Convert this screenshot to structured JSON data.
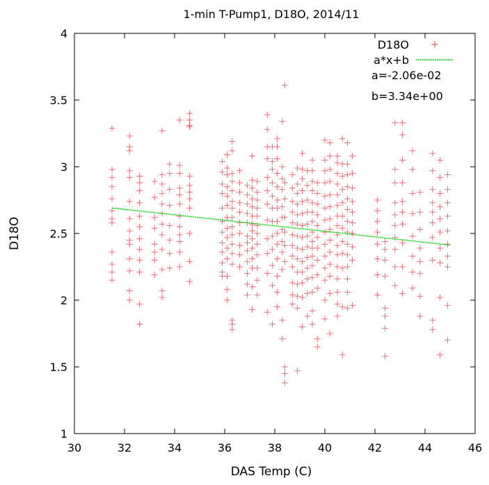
{
  "chart_data": {
    "type": "scatter",
    "title": "1-min T-Pump1, D18O, 2014/11",
    "xlabel": "DAS Temp (C)",
    "ylabel": "D18O",
    "xlim": [
      30,
      46
    ],
    "ylim": [
      1,
      4
    ],
    "xticks": [
      "30",
      "32",
      "34",
      "36",
      "38",
      "40",
      "42",
      "44",
      "46"
    ],
    "yticks": [
      "1",
      "1.5",
      "2",
      "2.5",
      "3",
      "3.5",
      "4"
    ],
    "grid": false,
    "legend_position": "top-right",
    "colors": {
      "points": "#e8414b",
      "fit": "#00dd00"
    },
    "series": [
      {
        "name": "D18O",
        "marker": "plus",
        "x": [
          31.5,
          31.5,
          31.5,
          31.5,
          31.5,
          31.5,
          31.5,
          31.5,
          31.5,
          31.5,
          31.5,
          31.5,
          32.2,
          32.2,
          32.2,
          32.2,
          32.2,
          32.2,
          32.2,
          32.2,
          32.2,
          32.2,
          32.2,
          32.2,
          32.2,
          32.2,
          32.6,
          32.6,
          32.6,
          32.6,
          32.6,
          32.6,
          32.6,
          32.6,
          32.6,
          32.6,
          32.6,
          32.6,
          33.2,
          33.2,
          33.2,
          33.2,
          33.2,
          33.2,
          33.2,
          33.2,
          33.5,
          33.5,
          33.5,
          33.5,
          33.5,
          33.5,
          33.5,
          33.5,
          33.5,
          33.5,
          33.5,
          33.5,
          33.8,
          33.8,
          33.8,
          33.8,
          33.8,
          33.8,
          33.8,
          33.8,
          34.2,
          34.2,
          34.2,
          34.2,
          34.2,
          34.2,
          34.2,
          34.2,
          34.2,
          34.2,
          34.2,
          34.2,
          34.6,
          34.6,
          34.6,
          34.6,
          34.6,
          34.6,
          34.6,
          34.6,
          34.6,
          34.6,
          34.6,
          34.6,
          35.9,
          35.9,
          35.9,
          35.9,
          35.9,
          35.9,
          35.9,
          35.9,
          35.9,
          35.9,
          35.9,
          35.9,
          36.1,
          36.1,
          36.1,
          36.1,
          36.1,
          36.1,
          36.1,
          36.1,
          36.1,
          36.1,
          36.1,
          36.1,
          36.1,
          36.1,
          36.3,
          36.3,
          36.3,
          36.3,
          36.3,
          36.3,
          36.3,
          36.3,
          36.3,
          36.3,
          36.3,
          36.3,
          36.3,
          36.3,
          36.3,
          36.3,
          36.6,
          36.6,
          36.6,
          36.6,
          36.6,
          36.6,
          36.6,
          36.6,
          36.6,
          36.6,
          36.9,
          36.9,
          36.9,
          36.9,
          36.9,
          36.9,
          36.9,
          36.9,
          36.9,
          36.9,
          36.9,
          36.9,
          37.1,
          37.1,
          37.1,
          37.1,
          37.1,
          37.1,
          37.1,
          37.1,
          37.1,
          37.1,
          37.1,
          37.1,
          37.1,
          37.1,
          37.3,
          37.3,
          37.3,
          37.3,
          37.3,
          37.3,
          37.3,
          37.3,
          37.3,
          37.3,
          37.3,
          37.3,
          37.7,
          37.7,
          37.7,
          37.7,
          37.7,
          37.7,
          37.7,
          37.7,
          37.7,
          37.7,
          37.7,
          37.7,
          37.9,
          37.9,
          37.9,
          37.9,
          37.9,
          37.9,
          37.9,
          37.9,
          37.9,
          37.9,
          37.9,
          37.9,
          38.1,
          38.1,
          38.1,
          38.1,
          38.1,
          38.1,
          38.1,
          38.1,
          38.1,
          38.1,
          38.1,
          38.1,
          38.1,
          38.1,
          38.3,
          38.3,
          38.3,
          38.3,
          38.3,
          38.3,
          38.3,
          38.3,
          38.3,
          38.3,
          38.3,
          38.3,
          38.4,
          38.4,
          38.4,
          38.4,
          38.4,
          38.4,
          38.4,
          38.4,
          38.4,
          38.4,
          38.7,
          38.7,
          38.7,
          38.7,
          38.7,
          38.7,
          38.7,
          38.7,
          38.7,
          38.7,
          38.7,
          38.7,
          38.9,
          38.9,
          38.9,
          38.9,
          38.9,
          38.9,
          38.9,
          38.9,
          38.9,
          38.9,
          38.9,
          38.9,
          38.9,
          38.9,
          39.1,
          39.1,
          39.1,
          39.1,
          39.1,
          39.1,
          39.1,
          39.1,
          39.1,
          39.1,
          39.1,
          39.1,
          39.1,
          39.1,
          39.3,
          39.3,
          39.3,
          39.3,
          39.3,
          39.3,
          39.3,
          39.3,
          39.3,
          39.3,
          39.3,
          39.3,
          39.5,
          39.5,
          39.5,
          39.5,
          39.5,
          39.5,
          39.5,
          39.5,
          39.5,
          39.5,
          39.5,
          39.5,
          39.5,
          39.5,
          39.5,
          39.5,
          39.7,
          39.7,
          39.7,
          39.7,
          39.7,
          39.7,
          39.7,
          39.7,
          39.7,
          39.7,
          39.7,
          39.7,
          40.0,
          40.0,
          40.0,
          40.0,
          40.0,
          40.0,
          40.0,
          40.0,
          40.0,
          40.0,
          40.0,
          40.0,
          40.0,
          40.0,
          40.2,
          40.2,
          40.2,
          40.2,
          40.2,
          40.2,
          40.2,
          40.2,
          40.2,
          40.2,
          40.2,
          40.2,
          40.2,
          40.2,
          40.5,
          40.5,
          40.5,
          40.5,
          40.5,
          40.5,
          40.5,
          40.5,
          40.5,
          40.5,
          40.5,
          40.5,
          40.5,
          40.5,
          40.5,
          40.5,
          40.7,
          40.7,
          40.7,
          40.7,
          40.7,
          40.7,
          40.7,
          40.7,
          40.7,
          40.7,
          40.7,
          40.7,
          40.9,
          40.9,
          40.9,
          40.9,
          40.9,
          40.9,
          40.9,
          40.9,
          40.9,
          40.9,
          40.9,
          40.9,
          40.9,
          40.9,
          41.1,
          41.1,
          41.1,
          41.1,
          41.1,
          41.1,
          41.1,
          41.1,
          41.1,
          41.1,
          42.1,
          42.1,
          42.1,
          42.1,
          42.1,
          42.1,
          42.1,
          42.1,
          42.4,
          42.4,
          42.4,
          42.4,
          42.4,
          42.4,
          42.4,
          42.4,
          42.8,
          42.8,
          42.8,
          42.8,
          42.8,
          42.8,
          42.8,
          42.8,
          42.8,
          42.8,
          43.1,
          43.1,
          43.1,
          43.1,
          43.1,
          43.1,
          43.1,
          43.1,
          43.1,
          43.1,
          43.5,
          43.5,
          43.5,
          43.5,
          43.5,
          43.5,
          43.5,
          43.5,
          43.8,
          43.8,
          43.8,
          43.8,
          43.8,
          43.8,
          43.8,
          43.8,
          44.3,
          44.3,
          44.3,
          44.3,
          44.3,
          44.3,
          44.3,
          44.3,
          44.3,
          44.3,
          44.6,
          44.6,
          44.6,
          44.6,
          44.6,
          44.6,
          44.6,
          44.6,
          44.6,
          44.6,
          44.9,
          44.9,
          44.9,
          44.9,
          44.9,
          44.9,
          44.9,
          44.9,
          44.9,
          44.9
        ],
        "y": [
          3.29,
          2.98,
          2.92,
          2.85,
          2.76,
          2.67,
          2.61,
          2.58,
          2.36,
          2.27,
          2.21,
          2.15,
          3.23,
          3.15,
          3.12,
          2.97,
          2.92,
          2.74,
          2.61,
          2.52,
          2.45,
          2.42,
          2.31,
          2.22,
          2.07,
          2.0,
          2.93,
          2.88,
          2.82,
          2.73,
          2.63,
          2.55,
          2.46,
          2.38,
          2.3,
          2.21,
          1.97,
          1.82,
          2.89,
          2.77,
          2.62,
          2.54,
          2.42,
          2.36,
          2.3,
          2.19,
          3.27,
          2.94,
          2.87,
          2.8,
          2.72,
          2.65,
          2.57,
          2.49,
          2.38,
          2.23,
          2.07,
          2.02,
          3.02,
          2.95,
          2.83,
          2.71,
          2.56,
          2.45,
          2.35,
          2.24,
          3.35,
          3.01,
          2.95,
          2.84,
          2.79,
          2.72,
          2.63,
          2.55,
          2.49,
          2.44,
          2.36,
          2.25,
          3.4,
          3.35,
          3.31,
          3.3,
          2.93,
          2.86,
          2.81,
          2.76,
          2.69,
          2.5,
          2.29,
          2.14,
          3.04,
          2.96,
          2.87,
          2.8,
          2.69,
          2.59,
          2.51,
          2.43,
          2.36,
          2.28,
          2.21,
          2.18,
          3.09,
          2.99,
          2.94,
          2.85,
          2.78,
          2.71,
          2.62,
          2.54,
          2.47,
          2.39,
          2.31,
          2.18,
          2.08,
          2.0,
          3.19,
          3.12,
          2.95,
          2.89,
          2.82,
          2.74,
          2.69,
          2.62,
          2.55,
          2.49,
          2.42,
          2.35,
          2.27,
          1.85,
          1.82,
          1.78,
          2.97,
          2.88,
          2.81,
          2.73,
          2.66,
          2.58,
          2.5,
          2.41,
          2.34,
          2.25,
          2.86,
          2.79,
          2.72,
          2.65,
          2.58,
          2.48,
          2.43,
          2.37,
          2.29,
          2.2,
          2.12,
          2.04,
          3.08,
          2.9,
          2.84,
          2.76,
          2.7,
          2.63,
          2.57,
          2.52,
          2.46,
          2.39,
          2.31,
          2.24,
          2.1,
          1.93,
          2.89,
          2.81,
          2.75,
          2.69,
          2.63,
          2.56,
          2.5,
          2.42,
          2.34,
          2.24,
          2.15,
          2.04,
          3.39,
          3.28,
          3.15,
          3.06,
          2.92,
          2.82,
          2.72,
          2.6,
          2.46,
          2.35,
          2.2,
          1.91,
          3.15,
          3.04,
          2.98,
          2.88,
          2.78,
          2.69,
          2.59,
          2.48,
          2.38,
          2.26,
          2.11,
          1.82,
          3.21,
          3.15,
          3.06,
          2.95,
          2.85,
          2.75,
          2.69,
          2.59,
          2.5,
          2.42,
          2.31,
          2.18,
          2.06,
          1.95,
          3.34,
          3.0,
          2.91,
          2.83,
          2.7,
          2.62,
          2.53,
          2.44,
          2.36,
          2.23,
          1.85,
          1.71,
          3.61,
          2.88,
          2.76,
          2.62,
          2.51,
          2.41,
          2.29,
          1.5,
          1.45,
          1.38,
          2.94,
          2.84,
          2.74,
          2.66,
          2.58,
          2.49,
          2.41,
          2.33,
          2.25,
          2.13,
          2.04,
          1.97,
          2.99,
          2.87,
          2.8,
          2.72,
          2.64,
          2.57,
          2.48,
          2.39,
          2.31,
          2.21,
          2.12,
          2.03,
          1.94,
          1.47,
          3.1,
          2.98,
          2.91,
          2.82,
          2.74,
          2.65,
          2.56,
          2.47,
          2.38,
          2.29,
          2.21,
          2.13,
          2.02,
          1.8,
          2.97,
          2.86,
          2.75,
          2.66,
          2.57,
          2.48,
          2.4,
          2.32,
          2.24,
          2.16,
          2.05,
          1.88,
          3.05,
          2.97,
          2.89,
          2.82,
          2.73,
          2.66,
          2.59,
          2.51,
          2.44,
          2.39,
          2.33,
          2.26,
          2.17,
          2.06,
          1.92,
          1.82,
          2.88,
          2.8,
          2.72,
          2.64,
          2.56,
          2.47,
          2.39,
          2.3,
          2.19,
          2.09,
          1.71,
          1.65,
          3.2,
          3.05,
          2.97,
          2.88,
          2.78,
          2.69,
          2.6,
          2.51,
          2.42,
          2.33,
          2.24,
          2.15,
          2.0,
          1.86,
          3.18,
          3.08,
          2.98,
          2.89,
          2.79,
          2.7,
          2.61,
          2.53,
          2.45,
          2.36,
          2.27,
          2.18,
          2.05,
          1.75,
          3.08,
          3.03,
          2.95,
          2.87,
          2.79,
          2.71,
          2.63,
          2.56,
          2.49,
          2.41,
          2.34,
          2.25,
          2.16,
          2.06,
          1.97,
          1.88,
          3.21,
          3.02,
          2.93,
          2.83,
          2.73,
          2.63,
          2.54,
          2.44,
          2.35,
          2.24,
          1.95,
          1.59,
          3.18,
          3.02,
          2.94,
          2.85,
          2.76,
          2.68,
          2.59,
          2.51,
          2.42,
          2.34,
          2.25,
          2.16,
          2.06,
          1.94,
          3.08,
          2.95,
          2.84,
          2.74,
          2.66,
          2.58,
          2.5,
          2.4,
          2.3,
          1.96,
          2.75,
          2.67,
          2.59,
          2.51,
          2.42,
          2.31,
          2.19,
          2.04,
          2.44,
          2.38,
          2.3,
          2.18,
          1.94,
          1.88,
          1.79,
          1.58,
          3.33,
          2.98,
          2.88,
          2.73,
          2.64,
          2.56,
          2.47,
          2.38,
          2.25,
          2.11,
          3.33,
          3.24,
          3.05,
          2.88,
          2.74,
          2.66,
          2.57,
          2.43,
          2.25,
          2.05,
          3.12,
          2.98,
          2.8,
          2.65,
          2.48,
          2.33,
          2.21,
          2.09,
          2.81,
          2.66,
          2.53,
          2.39,
          2.29,
          2.2,
          2.03,
          1.88,
          3.1,
          2.97,
          2.83,
          2.73,
          2.66,
          2.58,
          2.47,
          2.3,
          1.85,
          1.78,
          3.05,
          2.92,
          2.8,
          2.7,
          2.61,
          2.51,
          2.39,
          2.28,
          2.02,
          1.59,
          2.94,
          2.83,
          2.73,
          2.63,
          2.52,
          2.42,
          2.33,
          2.25,
          1.96,
          1.7
        ]
      }
    ],
    "fit": {
      "name": "a*x+b",
      "a": -0.0206,
      "b": 3.34,
      "x_range": [
        31.5,
        45
      ],
      "a_label": "a=-2.06e-02",
      "b_label": "b=3.34e+00"
    }
  }
}
